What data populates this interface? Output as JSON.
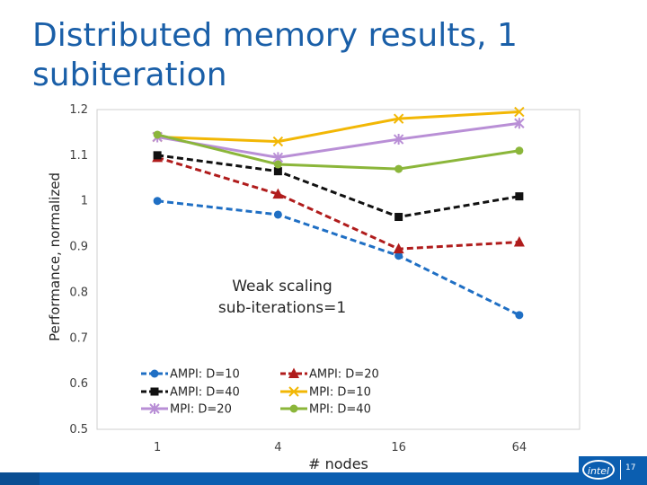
{
  "slide": {
    "title": "Distributed memory results, 1 subiteration",
    "page_number": "17",
    "logo_text": "intel"
  },
  "colors": {
    "title": "#1a5fa8",
    "footer_bar": "#0b5eb0"
  },
  "chart_data": {
    "type": "line",
    "title": "",
    "xlabel": "# nodes",
    "ylabel": "Performance, normalized",
    "categories": [
      "1",
      "4",
      "16",
      "64"
    ],
    "ylim": [
      0.5,
      1.2
    ],
    "yticks": [
      "0.5",
      "0.6",
      "0.7",
      "0.8",
      "0.9",
      "1",
      "1.1",
      "1.2"
    ],
    "grid": false,
    "legend_position": "bottom-center",
    "annotation": [
      "Weak scaling",
      "sub-iterations=1"
    ],
    "series": [
      {
        "name": "AMPI: D=10",
        "values": [
          1.0,
          0.97,
          0.88,
          0.75
        ],
        "color": "#1f6fc4",
        "dash": "dashed",
        "marker": "circle"
      },
      {
        "name": "AMPI: D=20",
        "values": [
          1.095,
          1.015,
          0.895,
          0.91
        ],
        "color": "#b01c1c",
        "dash": "dashed",
        "marker": "triangle"
      },
      {
        "name": "AMPI: D=40",
        "values": [
          1.1,
          1.065,
          0.965,
          1.01
        ],
        "color": "#111111",
        "dash": "dashed",
        "marker": "square"
      },
      {
        "name": "MPI: D=10",
        "values": [
          1.14,
          1.13,
          1.18,
          1.195
        ],
        "color": "#f2b705",
        "dash": "solid",
        "marker": "x"
      },
      {
        "name": "MPI: D=20",
        "values": [
          1.14,
          1.095,
          1.135,
          1.17
        ],
        "color": "#b98fd6",
        "dash": "solid",
        "marker": "star"
      },
      {
        "name": "MPI: D=40",
        "values": [
          1.145,
          1.08,
          1.07,
          1.11
        ],
        "color": "#8bb63a",
        "dash": "solid",
        "marker": "circle"
      }
    ]
  }
}
